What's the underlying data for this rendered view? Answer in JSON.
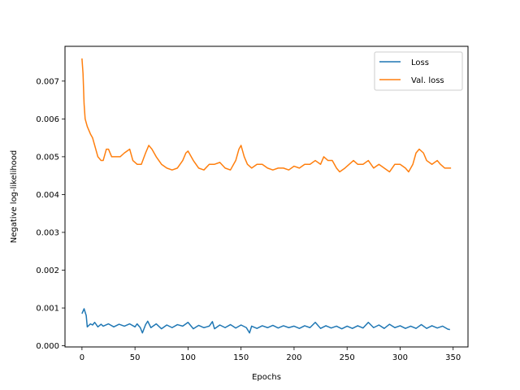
{
  "chart_data": {
    "type": "line",
    "title": "",
    "xlabel": "Epochs",
    "ylabel": "Negative log-likelihood",
    "xlim": [
      -16,
      364
    ],
    "ylim": [
      -3e-05,
      0.00792
    ],
    "xticks": [
      0,
      50,
      100,
      150,
      200,
      250,
      300,
      350
    ],
    "xtick_labels": [
      "0",
      "50",
      "100",
      "150",
      "200",
      "250",
      "300",
      "350"
    ],
    "yticks": [
      0.0,
      0.001,
      0.002,
      0.003,
      0.004,
      0.005,
      0.006,
      0.007
    ],
    "ytick_labels": [
      "0.000",
      "0.001",
      "0.002",
      "0.003",
      "0.004",
      "0.005",
      "0.006",
      "0.007"
    ],
    "grid": false,
    "legend_position": "top-right",
    "series": [
      {
        "name": "Loss",
        "color": "#1f77b4",
        "points": [
          [
            0,
            0.00085
          ],
          [
            2,
            0.00098
          ],
          [
            4,
            0.0008
          ],
          [
            5,
            0.0005
          ],
          [
            8,
            0.00058
          ],
          [
            10,
            0.00055
          ],
          [
            12,
            0.00062
          ],
          [
            15,
            0.0005
          ],
          [
            18,
            0.00057
          ],
          [
            20,
            0.00052
          ],
          [
            25,
            0.00058
          ],
          [
            30,
            0.0005
          ],
          [
            35,
            0.00057
          ],
          [
            40,
            0.00052
          ],
          [
            45,
            0.00058
          ],
          [
            50,
            0.0005
          ],
          [
            52,
            0.00058
          ],
          [
            55,
            0.00048
          ],
          [
            57,
            0.00034
          ],
          [
            60,
            0.00056
          ],
          [
            62,
            0.00065
          ],
          [
            65,
            0.00048
          ],
          [
            70,
            0.00058
          ],
          [
            75,
            0.00045
          ],
          [
            80,
            0.00055
          ],
          [
            85,
            0.00048
          ],
          [
            90,
            0.00056
          ],
          [
            95,
            0.00052
          ],
          [
            100,
            0.00062
          ],
          [
            105,
            0.00045
          ],
          [
            110,
            0.00054
          ],
          [
            115,
            0.00048
          ],
          [
            120,
            0.00052
          ],
          [
            123,
            0.00064
          ],
          [
            125,
            0.00045
          ],
          [
            130,
            0.00055
          ],
          [
            135,
            0.00048
          ],
          [
            140,
            0.00056
          ],
          [
            145,
            0.00047
          ],
          [
            150,
            0.00055
          ],
          [
            155,
            0.00048
          ],
          [
            158,
            0.00034
          ],
          [
            160,
            0.00052
          ],
          [
            165,
            0.00046
          ],
          [
            170,
            0.00053
          ],
          [
            175,
            0.00048
          ],
          [
            180,
            0.00054
          ],
          [
            185,
            0.00047
          ],
          [
            190,
            0.00053
          ],
          [
            195,
            0.00048
          ],
          [
            200,
            0.00052
          ],
          [
            205,
            0.00046
          ],
          [
            210,
            0.00053
          ],
          [
            215,
            0.00048
          ],
          [
            220,
            0.00062
          ],
          [
            225,
            0.00046
          ],
          [
            230,
            0.00053
          ],
          [
            235,
            0.00047
          ],
          [
            240,
            0.00052
          ],
          [
            245,
            0.00045
          ],
          [
            250,
            0.00052
          ],
          [
            255,
            0.00046
          ],
          [
            260,
            0.00053
          ],
          [
            265,
            0.00047
          ],
          [
            270,
            0.00062
          ],
          [
            275,
            0.00048
          ],
          [
            280,
            0.00055
          ],
          [
            285,
            0.00046
          ],
          [
            290,
            0.00057
          ],
          [
            295,
            0.00048
          ],
          [
            300,
            0.00053
          ],
          [
            305,
            0.00046
          ],
          [
            310,
            0.00052
          ],
          [
            315,
            0.00046
          ],
          [
            320,
            0.00056
          ],
          [
            325,
            0.00046
          ],
          [
            330,
            0.00053
          ],
          [
            335,
            0.00047
          ],
          [
            340,
            0.00052
          ],
          [
            345,
            0.00044
          ],
          [
            347,
            0.00043
          ]
        ]
      },
      {
        "name": "Val. loss",
        "color": "#ff7f0e",
        "points": [
          [
            0,
            0.0076
          ],
          [
            1,
            0.0072
          ],
          [
            2,
            0.0064
          ],
          [
            3,
            0.006
          ],
          [
            5,
            0.0058
          ],
          [
            8,
            0.0056
          ],
          [
            10,
            0.0055
          ],
          [
            13,
            0.0052
          ],
          [
            15,
            0.005
          ],
          [
            18,
            0.0049
          ],
          [
            20,
            0.0049
          ],
          [
            23,
            0.0052
          ],
          [
            25,
            0.0052
          ],
          [
            28,
            0.005
          ],
          [
            32,
            0.005
          ],
          [
            36,
            0.005
          ],
          [
            40,
            0.0051
          ],
          [
            45,
            0.0052
          ],
          [
            48,
            0.0049
          ],
          [
            52,
            0.0048
          ],
          [
            56,
            0.0048
          ],
          [
            60,
            0.0051
          ],
          [
            63,
            0.0053
          ],
          [
            66,
            0.0052
          ],
          [
            70,
            0.005
          ],
          [
            75,
            0.0048
          ],
          [
            80,
            0.0047
          ],
          [
            85,
            0.00465
          ],
          [
            90,
            0.0047
          ],
          [
            95,
            0.0049
          ],
          [
            98,
            0.0051
          ],
          [
            100,
            0.00515
          ],
          [
            105,
            0.0049
          ],
          [
            110,
            0.0047
          ],
          [
            115,
            0.00465
          ],
          [
            120,
            0.0048
          ],
          [
            125,
            0.0048
          ],
          [
            130,
            0.00485
          ],
          [
            135,
            0.0047
          ],
          [
            140,
            0.00465
          ],
          [
            145,
            0.0049
          ],
          [
            148,
            0.0052
          ],
          [
            150,
            0.0053
          ],
          [
            153,
            0.005
          ],
          [
            156,
            0.0048
          ],
          [
            160,
            0.0047
          ],
          [
            165,
            0.0048
          ],
          [
            170,
            0.0048
          ],
          [
            175,
            0.0047
          ],
          [
            180,
            0.00465
          ],
          [
            185,
            0.0047
          ],
          [
            190,
            0.0047
          ],
          [
            195,
            0.00465
          ],
          [
            200,
            0.00475
          ],
          [
            205,
            0.0047
          ],
          [
            210,
            0.0048
          ],
          [
            215,
            0.0048
          ],
          [
            220,
            0.0049
          ],
          [
            225,
            0.0048
          ],
          [
            228,
            0.005
          ],
          [
            232,
            0.0049
          ],
          [
            236,
            0.0049
          ],
          [
            240,
            0.0047
          ],
          [
            243,
            0.0046
          ],
          [
            248,
            0.0047
          ],
          [
            252,
            0.0048
          ],
          [
            256,
            0.0049
          ],
          [
            260,
            0.0048
          ],
          [
            265,
            0.0048
          ],
          [
            270,
            0.0049
          ],
          [
            275,
            0.0047
          ],
          [
            280,
            0.0048
          ],
          [
            285,
            0.0047
          ],
          [
            290,
            0.0046
          ],
          [
            295,
            0.0048
          ],
          [
            300,
            0.0048
          ],
          [
            305,
            0.0047
          ],
          [
            308,
            0.0046
          ],
          [
            312,
            0.0048
          ],
          [
            315,
            0.0051
          ],
          [
            318,
            0.0052
          ],
          [
            322,
            0.0051
          ],
          [
            325,
            0.0049
          ],
          [
            330,
            0.0048
          ],
          [
            335,
            0.0049
          ],
          [
            338,
            0.0048
          ],
          [
            342,
            0.0047
          ],
          [
            345,
            0.0047
          ],
          [
            348,
            0.0047
          ]
        ]
      }
    ]
  }
}
